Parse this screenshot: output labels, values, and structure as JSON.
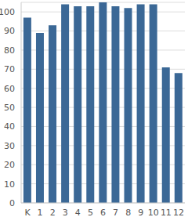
{
  "chart_data": {
    "type": "bar",
    "categories": [
      "K",
      "1",
      "2",
      "3",
      "4",
      "5",
      "6",
      "7",
      "8",
      "9",
      "10",
      "11",
      "12"
    ],
    "values": [
      97,
      89,
      93,
      104,
      103,
      103,
      105,
      103,
      102,
      104,
      104,
      71,
      68
    ],
    "color": "#3b6896",
    "ylim": [
      0,
      105
    ],
    "yticks": [
      0,
      10,
      20,
      30,
      40,
      50,
      60,
      70,
      80,
      90,
      100
    ],
    "grid": true
  }
}
